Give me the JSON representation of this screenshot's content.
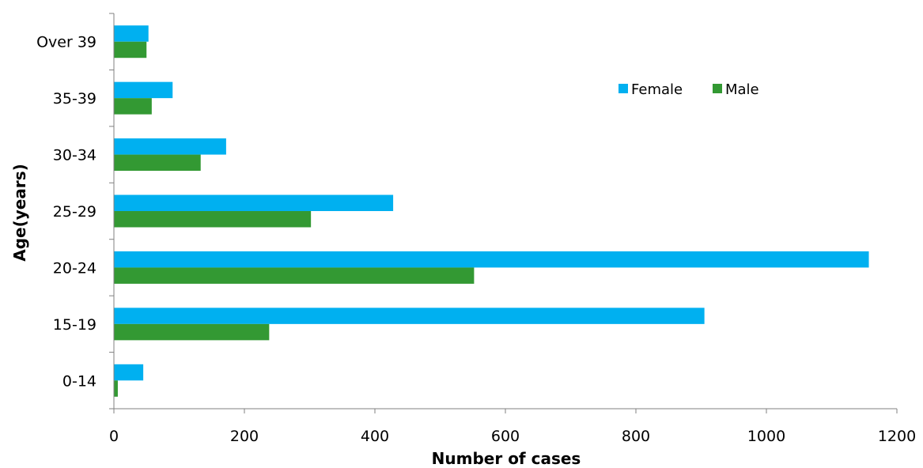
{
  "chart_data": {
    "type": "bar",
    "orientation": "horizontal",
    "categories": [
      "0-14",
      "15-19",
      "20-24",
      "25-29",
      "30-34",
      "35-39",
      "Over 39"
    ],
    "series": [
      {
        "name": "Female",
        "color": "#00b0f0",
        "values": [
          45,
          905,
          1157,
          428,
          172,
          90,
          53
        ]
      },
      {
        "name": "Male",
        "color": "#339933",
        "values": [
          6,
          238,
          552,
          302,
          133,
          58,
          50
        ]
      }
    ],
    "xlabel": "Number of cases",
    "ylabel": "Age(years)",
    "xlim": [
      0,
      1200
    ],
    "xticks": [
      "0",
      "200",
      "400",
      "600",
      "800",
      "1000",
      "1200"
    ],
    "grid": false,
    "legend_position": "top-right"
  }
}
